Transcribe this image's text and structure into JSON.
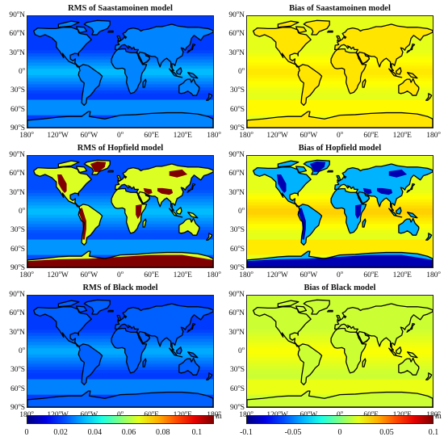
{
  "chart_data": [
    {
      "type": "heatmap",
      "title": "RMS of Saastamoinen model",
      "range": [
        0,
        0.11
      ],
      "colormap": "jet",
      "description_units": "m",
      "base_level": 0.02,
      "tropical_level": 0.035,
      "land_level": 0.028
    },
    {
      "type": "heatmap",
      "title": "Bias of Saastamoinen model",
      "range": [
        -0.1,
        0.1
      ],
      "colormap": "jet",
      "base_level": 0.02,
      "tropical_level": 0.03,
      "land_level": 0.03
    },
    {
      "type": "heatmap",
      "title": "RMS of Hopfield model",
      "range": [
        0,
        0.11
      ],
      "colormap": "jet",
      "base_level": 0.022,
      "tropical_level": 0.035,
      "land_level": 0.065,
      "high_terrain_level": 0.11
    },
    {
      "type": "heatmap",
      "title": "Bias of Hopfield model",
      "range": [
        -0.1,
        0.1
      ],
      "colormap": "jet",
      "base_level": 0.02,
      "tropical_level": 0.035,
      "land_level": -0.04,
      "high_terrain_level": -0.09
    },
    {
      "type": "heatmap",
      "title": "RMS of Black model",
      "range": [
        0,
        0.11
      ],
      "colormap": "jet",
      "base_level": 0.02,
      "tropical_level": 0.033,
      "land_level": 0.024
    },
    {
      "type": "heatmap",
      "title": "Bias of Black model",
      "range": [
        -0.1,
        0.1
      ],
      "colormap": "jet",
      "base_level": 0.015,
      "tropical_level": 0.025,
      "land_level": 0.015
    }
  ],
  "axes": {
    "y_ticks": [
      {
        "deg": "90",
        "hem": "N"
      },
      {
        "deg": "60",
        "hem": "N"
      },
      {
        "deg": "30",
        "hem": "N"
      },
      {
        "deg": "0",
        "hem": ""
      },
      {
        "deg": "30",
        "hem": "S"
      },
      {
        "deg": "60",
        "hem": "S"
      },
      {
        "deg": "90",
        "hem": "S"
      }
    ],
    "x_ticks": [
      {
        "deg": "180",
        "hem": ""
      },
      {
        "deg": "120",
        "hem": "W"
      },
      {
        "deg": "60",
        "hem": "W"
      },
      {
        "deg": "0",
        "hem": ""
      },
      {
        "deg": "60",
        "hem": "E"
      },
      {
        "deg": "120",
        "hem": "E"
      },
      {
        "deg": "180",
        "hem": ""
      }
    ],
    "degree_symbol": "o"
  },
  "colorbars": [
    {
      "ticks": [
        "0",
        "0.02",
        "0.04",
        "0.06",
        "0.08",
        "0.1"
      ],
      "values": [
        0,
        0.02,
        0.04,
        0.06,
        0.08,
        0.1
      ],
      "range": [
        0,
        0.11
      ],
      "unit": "m"
    },
    {
      "ticks": [
        "-0.1",
        "-0.05",
        "0",
        "0.05",
        "0.1"
      ],
      "values": [
        -0.1,
        -0.05,
        0,
        0.05,
        0.1
      ],
      "range": [
        -0.1,
        0.1
      ],
      "unit": "m"
    }
  ]
}
